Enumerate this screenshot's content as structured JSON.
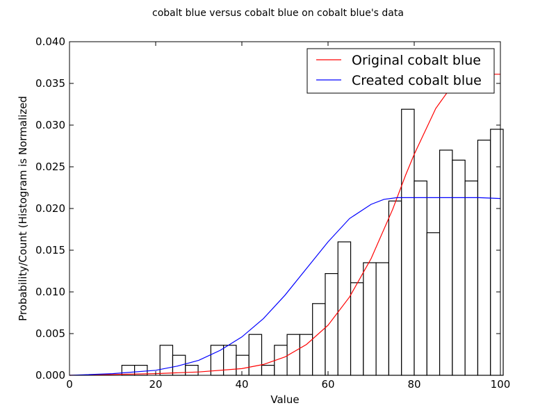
{
  "chart_data": {
    "type": "histogram+line",
    "title": "cobalt blue versus cobalt blue on cobalt blue's data",
    "xlabel": "Value",
    "ylabel": "Probability/Count (Histogram is Normalized",
    "xlim": [
      0,
      100
    ],
    "ylim": [
      0,
      0.04
    ],
    "xticks": [
      "0",
      "20",
      "40",
      "60",
      "80",
      "100"
    ],
    "yticks": [
      "0.000",
      "0.005",
      "0.010",
      "0.015",
      "0.020",
      "0.025",
      "0.030",
      "0.035",
      "0.040"
    ],
    "legend_position": "top-right",
    "histogram": {
      "bin_width": 2.95,
      "bins": [
        {
          "start": 12.15,
          "value": 0.0012
        },
        {
          "start": 15.1,
          "value": 0.0012
        },
        {
          "start": 21.0,
          "value": 0.0036
        },
        {
          "start": 23.95,
          "value": 0.0024
        },
        {
          "start": 26.9,
          "value": 0.0012
        },
        {
          "start": 32.8,
          "value": 0.0036
        },
        {
          "start": 35.75,
          "value": 0.0036
        },
        {
          "start": 38.7,
          "value": 0.0024
        },
        {
          "start": 41.65,
          "value": 0.0049
        },
        {
          "start": 44.6,
          "value": 0.0012
        },
        {
          "start": 47.55,
          "value": 0.0036
        },
        {
          "start": 50.5,
          "value": 0.0049
        },
        {
          "start": 53.45,
          "value": 0.0049
        },
        {
          "start": 56.4,
          "value": 0.0086
        },
        {
          "start": 59.35,
          "value": 0.0122
        },
        {
          "start": 62.3,
          "value": 0.016
        },
        {
          "start": 65.25,
          "value": 0.0111
        },
        {
          "start": 68.2,
          "value": 0.0135
        },
        {
          "start": 71.15,
          "value": 0.0135
        },
        {
          "start": 74.1,
          "value": 0.0209
        },
        {
          "start": 77.05,
          "value": 0.0319
        },
        {
          "start": 80.0,
          "value": 0.0233
        },
        {
          "start": 82.95,
          "value": 0.0171
        },
        {
          "start": 85.9,
          "value": 0.027
        },
        {
          "start": 88.85,
          "value": 0.0258
        },
        {
          "start": 91.8,
          "value": 0.0233
        },
        {
          "start": 94.75,
          "value": 0.0282
        },
        {
          "start": 97.7,
          "value": 0.0295
        }
      ]
    },
    "series": [
      {
        "name": "Original cobalt blue",
        "color": "#ff0000",
        "x": [
          0,
          10,
          20,
          30,
          40,
          45,
          50,
          55,
          60,
          65,
          70,
          75,
          78,
          80,
          85,
          90,
          92,
          94,
          96,
          100
        ],
        "y": [
          0.0,
          0.0001,
          0.0002,
          0.0004,
          0.0008,
          0.0013,
          0.0022,
          0.0037,
          0.006,
          0.0094,
          0.014,
          0.0199,
          0.024,
          0.0265,
          0.032,
          0.0356,
          0.0361,
          0.0361,
          0.0361,
          0.0361
        ]
      },
      {
        "name": "Created cobalt blue",
        "color": "#0000ff",
        "x": [
          0,
          10,
          20,
          25,
          30,
          35,
          40,
          45,
          50,
          55,
          60,
          65,
          70,
          73,
          76,
          80,
          85,
          90,
          95,
          100
        ],
        "y": [
          0.0,
          0.0002,
          0.0006,
          0.0011,
          0.0018,
          0.003,
          0.0046,
          0.0068,
          0.0096,
          0.0128,
          0.016,
          0.0188,
          0.0205,
          0.0211,
          0.0213,
          0.0213,
          0.0213,
          0.0213,
          0.0213,
          0.0212
        ]
      }
    ]
  }
}
